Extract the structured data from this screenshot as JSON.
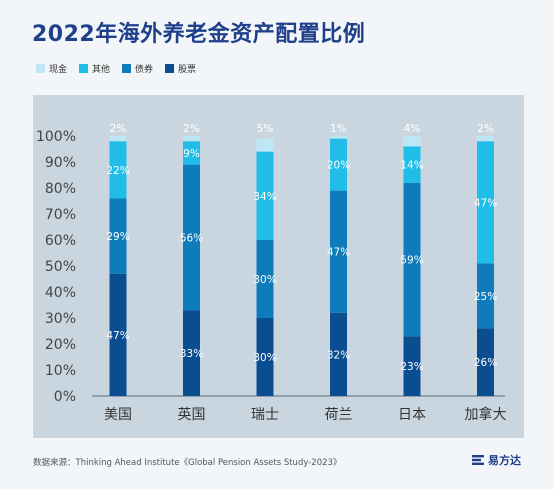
{
  "page_title": "2022年海外养老金资产配置比例",
  "source_text": "数据来源：Thinking Ahead Institute《Global Pension Assets Study-2023》",
  "brand": "易方达",
  "brand_icon": "brand-logo-icon",
  "chart_data": {
    "type": "bar",
    "stacked": true,
    "title": "2022年海外养老金资产配置比例",
    "categories": [
      "美国",
      "英国",
      "瑞士",
      "荷兰",
      "日本",
      "加拿大"
    ],
    "series": [
      {
        "name": "股票",
        "color": "#0a4d91",
        "values": [
          47,
          33,
          30,
          32,
          23,
          26
        ],
        "labels": [
          "47%",
          "33%",
          "30%",
          "32%",
          "23%",
          "26%"
        ]
      },
      {
        "name": "债券",
        "color": "#0e7cba",
        "values": [
          29,
          56,
          30,
          47,
          59,
          25
        ],
        "labels": [
          "29%",
          "56%",
          "30%",
          "47%",
          "59%",
          "25%"
        ]
      },
      {
        "name": "其他",
        "color": "#1fbde8",
        "values": [
          22,
          9,
          34,
          20,
          14,
          47
        ],
        "labels": [
          "22%",
          "9%",
          "34%",
          "20%",
          "14%",
          "47%"
        ]
      },
      {
        "name": "现金",
        "color": "#bfe6f5",
        "values": [
          2,
          2,
          5,
          1,
          4,
          2
        ],
        "labels": [
          "2%",
          "2%",
          "5%",
          "1%",
          "4%",
          "2%"
        ]
      }
    ],
    "legend_order": [
      "现金",
      "其他",
      "债券",
      "股票"
    ],
    "ylim": [
      0,
      100
    ],
    "yticks": [
      "0%",
      "10%",
      "20%",
      "30%",
      "40%",
      "50%",
      "60%",
      "70%",
      "80%",
      "90%",
      "100%"
    ],
    "xlabel": "",
    "ylabel": "",
    "grid": false,
    "legend_position": "top-left"
  }
}
